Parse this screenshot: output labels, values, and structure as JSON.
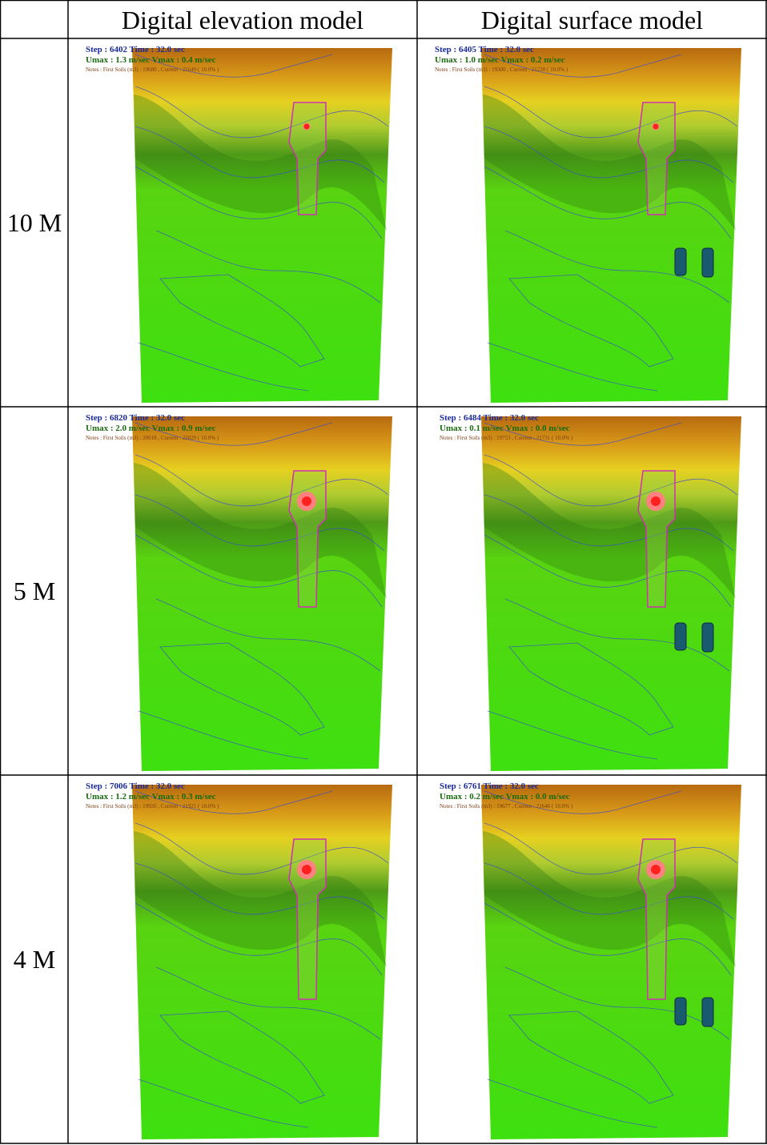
{
  "header": {
    "columns": [
      "Digital elevation model",
      "Digital surface model"
    ]
  },
  "rows": [
    {
      "label": "10 M",
      "cells": [
        {
          "lines": [
            "Step : 6402   Time : 32.0 sec",
            "Umax : 1.3 m/sec   Vmax : 0.4 m/sec",
            "Notes :  First Soils (m3) : 19680 , Current : 21649 ( 10.0% )"
          ]
        },
        {
          "lines": [
            "Step : 6405   Time : 32.0 sec",
            "Umax : 1.0 m/sec   Vmax : 0.2 m/sec",
            "Notes :  First Soils (m3) : 19300 , Current : 21230 ( 10.0% )"
          ]
        }
      ]
    },
    {
      "label": "5 M",
      "cells": [
        {
          "lines": [
            "Step : 6820   Time : 32.0 sec",
            "Umax : 2.0 m/sec   Vmax : 0.9 m/sec",
            "Notes :  First Soils (m3) : 20018 , Current : 22020 ( 10.0% )"
          ]
        },
        {
          "lines": [
            "Step : 6484   Time : 32.0 sec",
            "Umax : 0.1 m/sec   Vmax : 0.0 m/sec",
            "Notes :  First Soils (m3) : 19753 , Current : 21731 ( 10.0% )"
          ]
        }
      ]
    },
    {
      "label": "4 M",
      "cells": [
        {
          "lines": [
            "Step : 7006   Time : 32.0 sec",
            "Umax : 1.2 m/sec   Vmax : 0.3 m/sec",
            "Notes :  First Soils (m3) : 19926 , Current : 21921 ( 10.0% )"
          ]
        },
        {
          "lines": [
            "Step : 6761   Time : 32.0 sec",
            "Umax : 0.2 m/sec   Vmax : 0.0 m/sec",
            "Notes :  First Soils (m3) : 19677 , Current : 21646 ( 10.0% )"
          ]
        }
      ]
    }
  ]
}
